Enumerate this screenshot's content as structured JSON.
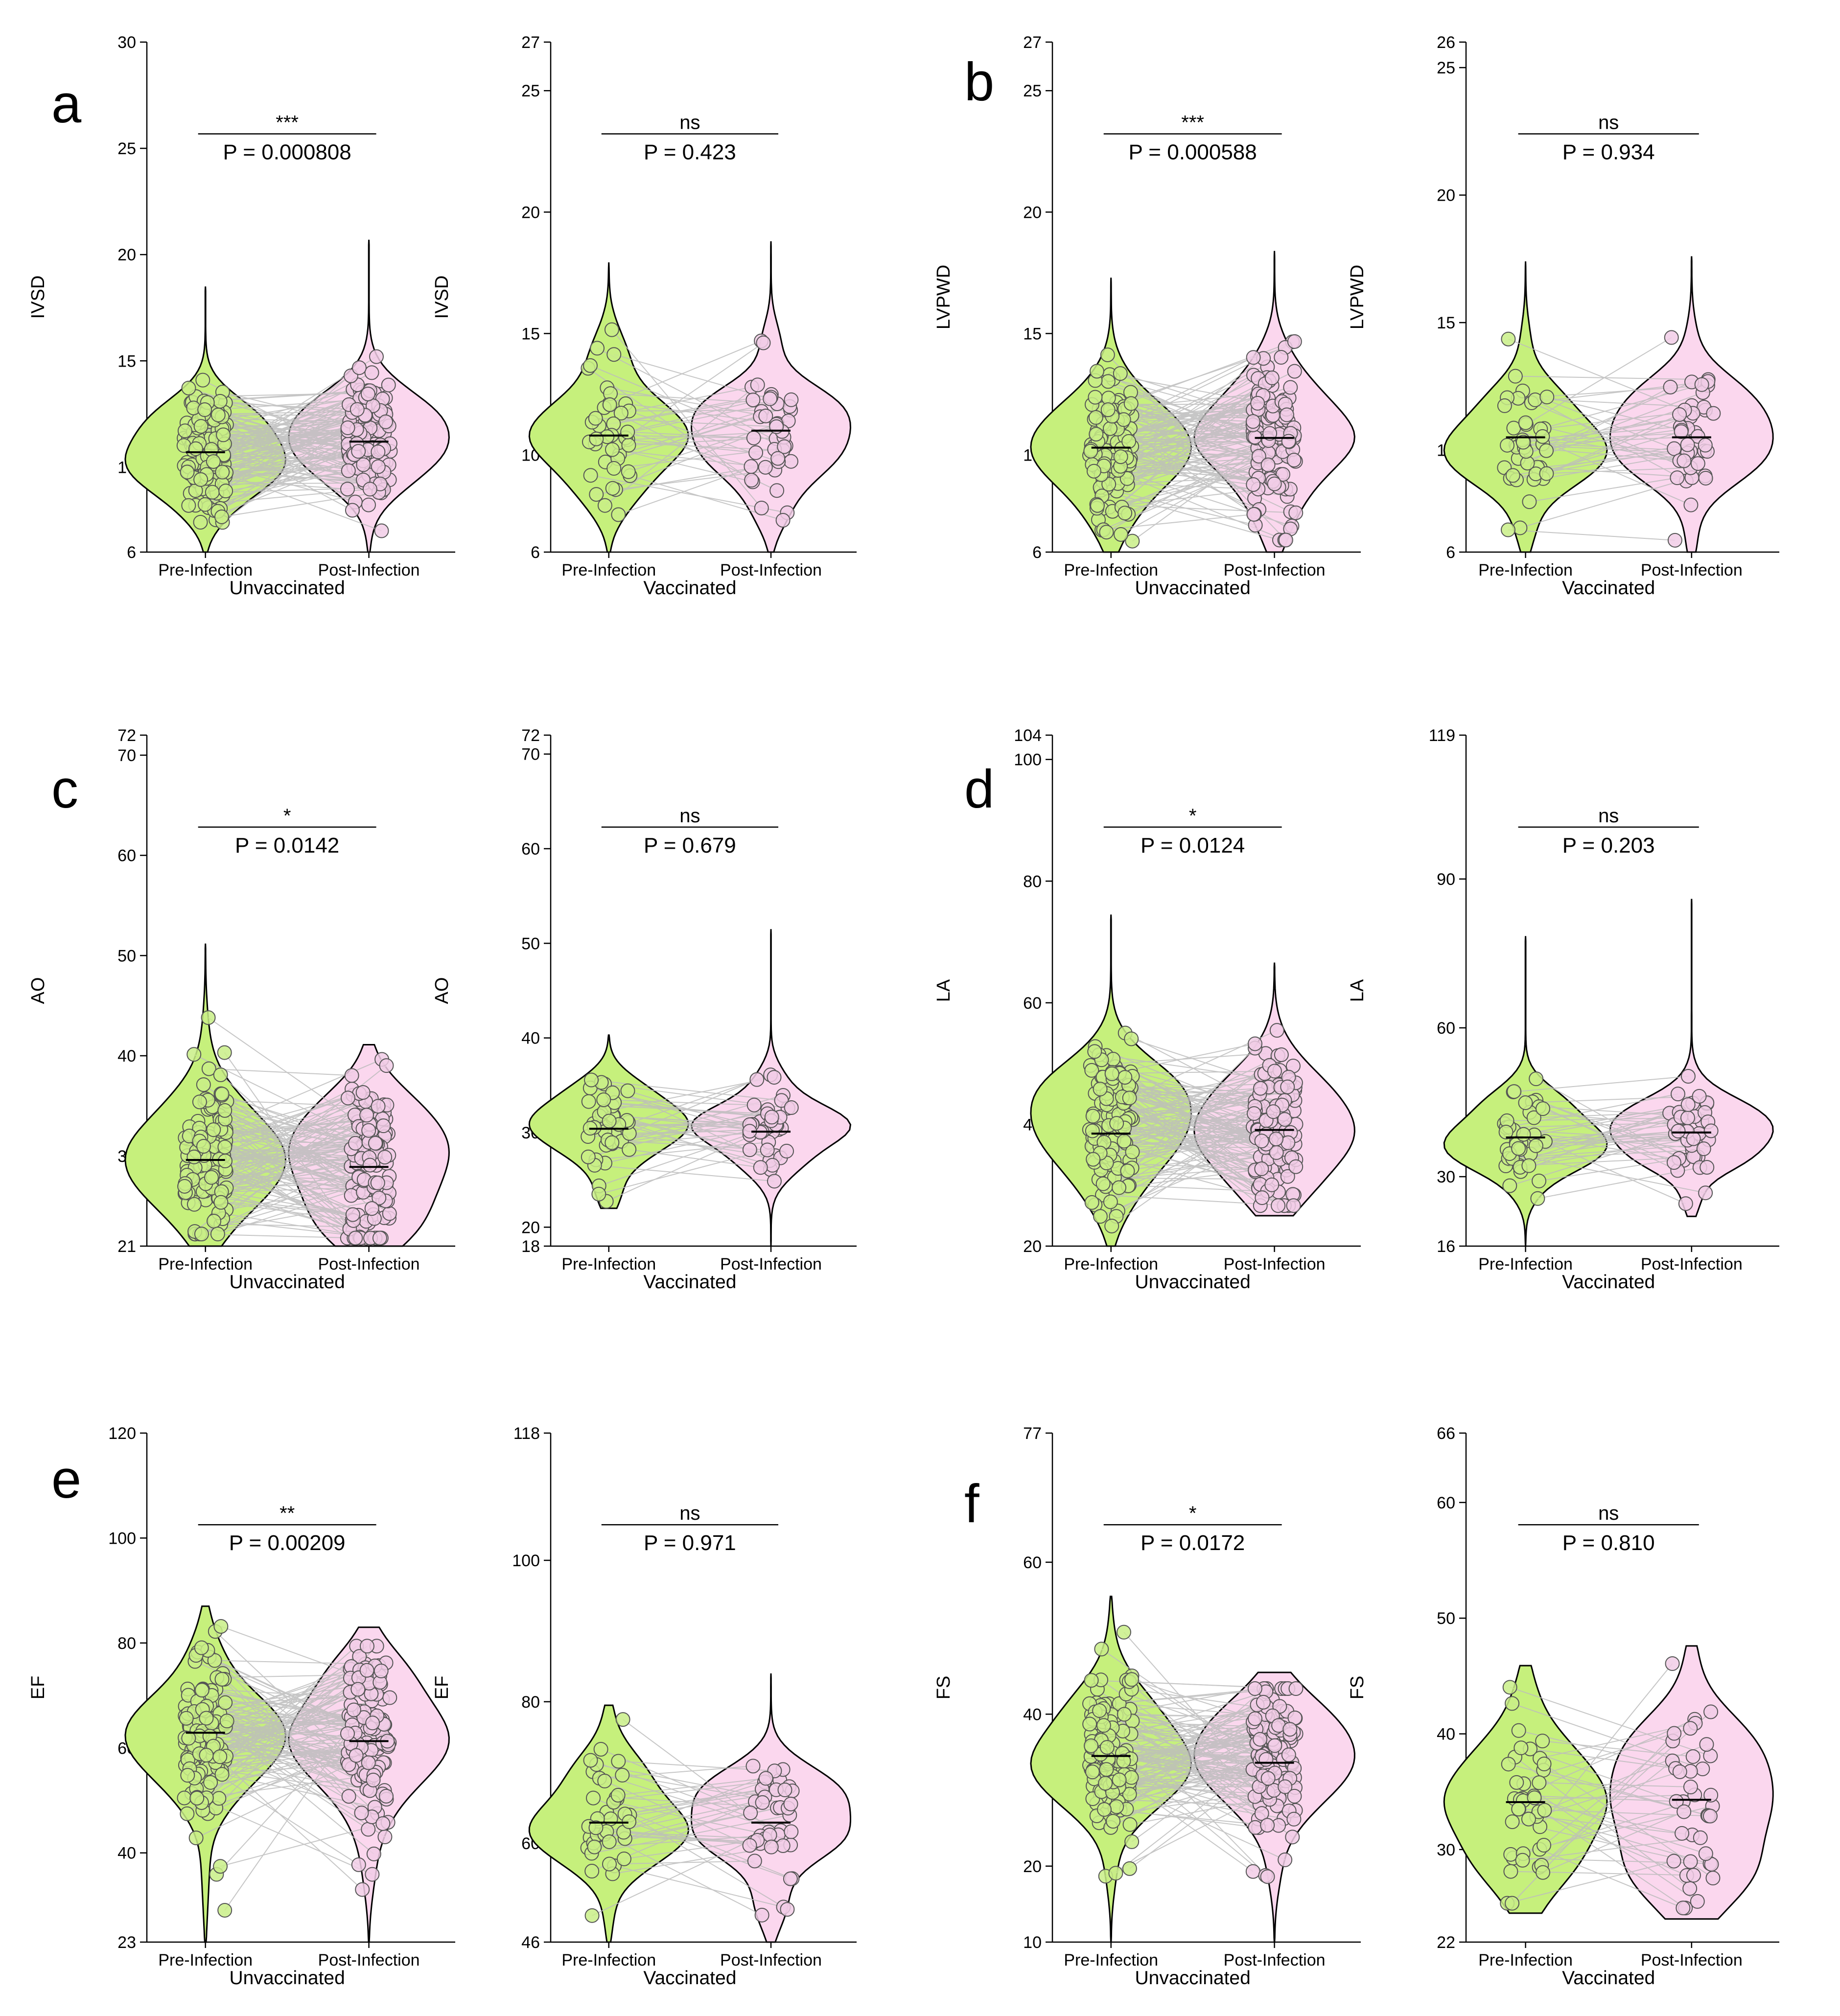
{
  "colors": {
    "pre": "#c6f07c",
    "post": "#fbd7ee",
    "pre_point": "#c9ef87",
    "post_point": "#f1cde6",
    "pair_line": "#bdbdbd"
  },
  "chart_data": [
    {
      "type": "violin",
      "panel": "a",
      "ylabel": "IVSD",
      "group": "Unvaccinated",
      "categories": [
        "Pre-Infection",
        "Post-Infection"
      ],
      "yticks": [
        6,
        10,
        15,
        20,
        25,
        30
      ],
      "ylim": [
        6,
        30
      ],
      "violin_range": [
        [
          6,
          18.5
        ],
        [
          6,
          20.7
        ]
      ],
      "medians": [
        10.7,
        11.2
      ],
      "sig": "***",
      "p": "P = 0.000808",
      "n": 120,
      "spread": 1.6
    },
    {
      "type": "violin",
      "panel": "",
      "ylabel": "IVSD",
      "group": "Vaccinated",
      "categories": [
        "Pre-Infection",
        "Post-Infection"
      ],
      "yticks": [
        6,
        10,
        15,
        20,
        25,
        27
      ],
      "ylim": [
        6,
        27
      ],
      "violin_range": [
        [
          6,
          17.9
        ],
        [
          6,
          18.8
        ]
      ],
      "medians": [
        10.8,
        11.0
      ],
      "sig": "ns",
      "p": "P = 0.423",
      "n": 40,
      "spread": 1.6
    },
    {
      "type": "violin",
      "panel": "b",
      "ylabel": "LVPWD",
      "group": "Unvaccinated",
      "categories": [
        "Pre-Infection",
        "Post-Infection"
      ],
      "yticks": [
        6,
        10,
        15,
        20,
        25,
        27
      ],
      "ylim": [
        6,
        27
      ],
      "violin_range": [
        [
          6,
          17.3
        ],
        [
          6,
          18.4
        ]
      ],
      "medians": [
        10.3,
        10.7
      ],
      "sig": "***",
      "p": "P = 0.000588",
      "n": 120,
      "spread": 1.7
    },
    {
      "type": "violin",
      "panel": "",
      "ylabel": "LVPWD",
      "group": "Vaccinated",
      "categories": [
        "Pre-Infection",
        "Post-Infection"
      ],
      "yticks": [
        6,
        10,
        15,
        20,
        25,
        26
      ],
      "ylim": [
        6,
        26
      ],
      "violin_range": [
        [
          6,
          17.4
        ],
        [
          6,
          17.6
        ]
      ],
      "medians": [
        10.5,
        10.5
      ],
      "sig": "ns",
      "p": "P = 0.934",
      "n": 40,
      "spread": 1.6
    },
    {
      "type": "violin",
      "panel": "c",
      "ylabel": "AO",
      "group": "Unvaccinated",
      "categories": [
        "Pre-Infection",
        "Post-Infection"
      ],
      "yticks": [
        21,
        30,
        40,
        50,
        60,
        70,
        72
      ],
      "ylim": [
        21,
        72
      ],
      "violin_range": [
        [
          21,
          51.2
        ],
        [
          21,
          41.1
        ]
      ],
      "medians": [
        29.6,
        28.9
      ],
      "sig": "*",
      "p": "P = 0.0142",
      "n": 120,
      "spread": 4.5
    },
    {
      "type": "violin",
      "panel": "",
      "ylabel": "AO",
      "group": "Vaccinated",
      "categories": [
        "Pre-Infection",
        "Post-Infection"
      ],
      "yticks": [
        18,
        20,
        30,
        40,
        50,
        60,
        70,
        72
      ],
      "ylim": [
        18,
        72
      ],
      "violin_range": [
        [
          22,
          40.3
        ],
        [
          18,
          51.5
        ]
      ],
      "medians": [
        30.4,
        30.1
      ],
      "sig": "ns",
      "p": "P = 0.679",
      "n": 40,
      "spread": 3.2
    },
    {
      "type": "violin",
      "panel": "d",
      "ylabel": "LA",
      "group": "Unvaccinated",
      "categories": [
        "Pre-Infection",
        "Post-Infection"
      ],
      "yticks": [
        20,
        40,
        60,
        80,
        100,
        104
      ],
      "ylim": [
        20,
        104
      ],
      "violin_range": [
        [
          20,
          74.5
        ],
        [
          25,
          66.5
        ]
      ],
      "medians": [
        38.5,
        39.1
      ],
      "sig": "*",
      "p": "P = 0.0124",
      "n": 120,
      "spread": 7
    },
    {
      "type": "violin",
      "panel": "",
      "ylabel": "LA",
      "group": "Vaccinated",
      "categories": [
        "Pre-Infection",
        "Post-Infection"
      ],
      "yticks": [
        16,
        30,
        60,
        90,
        119
      ],
      "ylim": [
        16,
        119
      ],
      "violin_range": [
        [
          16,
          78.5
        ],
        [
          22,
          86
        ]
      ],
      "medians": [
        37.9,
        38.9
      ],
      "sig": "ns",
      "p": "P = 0.203",
      "n": 40,
      "spread": 5.5
    },
    {
      "type": "violin",
      "panel": "e",
      "ylabel": "EF",
      "group": "Unvaccinated",
      "categories": [
        "Pre-Infection",
        "Post-Infection"
      ],
      "yticks": [
        23,
        40,
        60,
        80,
        100,
        120
      ],
      "ylim": [
        23,
        120
      ],
      "violin_range": [
        [
          23,
          87
        ],
        [
          23,
          83
        ]
      ],
      "medians": [
        62.9,
        61.3
      ],
      "sig": "**",
      "p": "P = 0.00209",
      "n": 120,
      "spread": 9
    },
    {
      "type": "violin",
      "panel": "",
      "ylabel": "EF",
      "group": "Vaccinated",
      "categories": [
        "Pre-Infection",
        "Post-Infection"
      ],
      "yticks": [
        46,
        60,
        80,
        100,
        118
      ],
      "ylim": [
        46,
        118
      ],
      "violin_range": [
        [
          46,
          79.5
        ],
        [
          46,
          84
        ]
      ],
      "medians": [
        62.9,
        62.9
      ],
      "sig": "ns",
      "p": "P = 0.971",
      "n": 40,
      "spread": 5.5
    },
    {
      "type": "violin",
      "panel": "f",
      "ylabel": "FS",
      "group": "Unvaccinated",
      "categories": [
        "Pre-Infection",
        "Post-Infection"
      ],
      "yticks": [
        10,
        20,
        40,
        60,
        77
      ],
      "ylim": [
        10,
        77
      ],
      "violin_range": [
        [
          10,
          55.5
        ],
        [
          10,
          45.5
        ]
      ],
      "medians": [
        34.5,
        33.6
      ],
      "sig": "*",
      "p": "P = 0.0172",
      "n": 120,
      "spread": 6
    },
    {
      "type": "violin",
      "panel": "",
      "ylabel": "FS",
      "group": "Vaccinated",
      "categories": [
        "Pre-Infection",
        "Post-Infection"
      ],
      "yticks": [
        22,
        30,
        40,
        50,
        60,
        66
      ],
      "ylim": [
        22,
        66
      ],
      "violin_range": [
        [
          24.5,
          45.9
        ],
        [
          24,
          47.6
        ]
      ],
      "medians": [
        34.1,
        34.3
      ],
      "sig": "ns",
      "p": "P = 0.810",
      "n": 40,
      "spread": 4.5
    }
  ]
}
